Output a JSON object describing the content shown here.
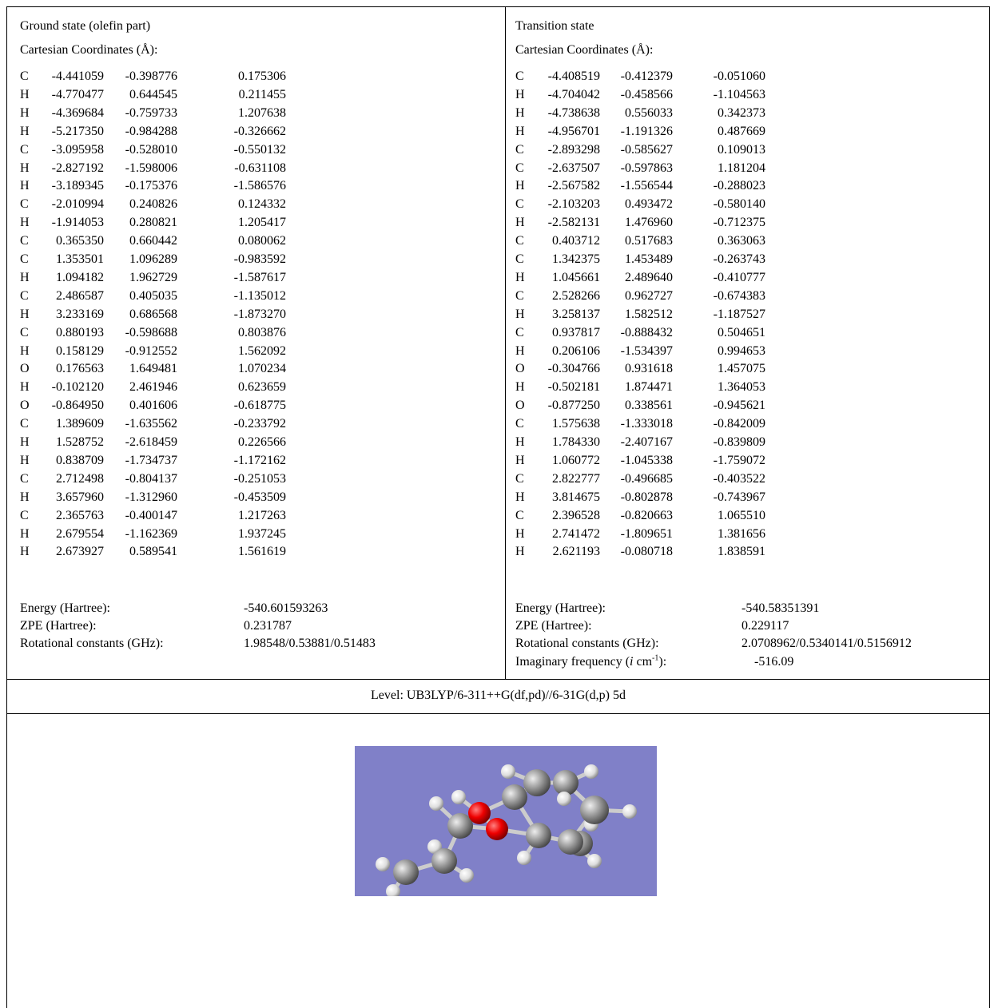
{
  "ground_state": {
    "title": "Ground state (olefin part)",
    "coord_heading": "Cartesian Coordinates (Å):",
    "atoms": [
      [
        "C",
        "-4.441059",
        "-0.398776",
        "0.175306"
      ],
      [
        "H",
        "-4.770477",
        "0.644545",
        "0.211455"
      ],
      [
        "H",
        "-4.369684",
        "-0.759733",
        "1.207638"
      ],
      [
        "H",
        "-5.217350",
        "-0.984288",
        "-0.326662"
      ],
      [
        "C",
        "-3.095958",
        "-0.528010",
        "-0.550132"
      ],
      [
        "H",
        "-2.827192",
        "-1.598006",
        "-0.631108"
      ],
      [
        "H",
        "-3.189345",
        "-0.175376",
        "-1.586576"
      ],
      [
        "C",
        "-2.010994",
        "0.240826",
        "0.124332"
      ],
      [
        "H",
        "-1.914053",
        "0.280821",
        "1.205417"
      ],
      [
        "C",
        "0.365350",
        "0.660442",
        "0.080062"
      ],
      [
        "C",
        "1.353501",
        "1.096289",
        "-0.983592"
      ],
      [
        "H",
        "1.094182",
        "1.962729",
        "-1.587617"
      ],
      [
        "C",
        "2.486587",
        "0.405035",
        "-1.135012"
      ],
      [
        "H",
        "3.233169",
        "0.686568",
        "-1.873270"
      ],
      [
        "C",
        "0.880193",
        "-0.598688",
        "0.803876"
      ],
      [
        "H",
        "0.158129",
        "-0.912552",
        "1.562092"
      ],
      [
        "O",
        "0.176563",
        "1.649481",
        "1.070234"
      ],
      [
        "H",
        "-0.102120",
        "2.461946",
        "0.623659"
      ],
      [
        "O",
        "-0.864950",
        "0.401606",
        "-0.618775"
      ],
      [
        "C",
        "1.389609",
        "-1.635562",
        "-0.233792"
      ],
      [
        "H",
        "1.528752",
        "-2.618459",
        "0.226566"
      ],
      [
        "H",
        "0.838709",
        "-1.734737",
        "-1.172162"
      ],
      [
        "C",
        "2.712498",
        "-0.804137",
        "-0.251053"
      ],
      [
        "H",
        "3.657960",
        "-1.312960",
        "-0.453509"
      ],
      [
        "C",
        "2.365763",
        "-0.400147",
        "1.217263"
      ],
      [
        "H",
        "2.679554",
        "-1.162369",
        "1.937245"
      ],
      [
        "H",
        "2.673927",
        "0.589541",
        "1.561619"
      ]
    ],
    "properties": [
      [
        "Energy (Hartree):",
        "-540.601593263"
      ],
      [
        "ZPE (Hartree):",
        "0.231787"
      ],
      [
        "Rotational constants (GHz):",
        "1.98548/0.53881/0.51483"
      ]
    ]
  },
  "transition_state": {
    "title": "Transition state",
    "coord_heading": "Cartesian Coordinates (Å):",
    "atoms": [
      [
        "C",
        "-4.408519",
        "-0.412379",
        "-0.051060"
      ],
      [
        "H",
        "-4.704042",
        "-0.458566",
        "-1.104563"
      ],
      [
        "H",
        "-4.738638",
        "0.556033",
        "0.342373"
      ],
      [
        "H",
        "-4.956701",
        "-1.191326",
        "0.487669"
      ],
      [
        "C",
        "-2.893298",
        "-0.585627",
        "0.109013"
      ],
      [
        "C",
        "-2.637507",
        "-0.597863",
        "1.181204"
      ],
      [
        "H",
        "-2.567582",
        "-1.556544",
        "-0.288023"
      ],
      [
        "C",
        "-2.103203",
        "0.493472",
        "-0.580140"
      ],
      [
        "H",
        "-2.582131",
        "1.476960",
        "-0.712375"
      ],
      [
        "C",
        "0.403712",
        "0.517683",
        "0.363063"
      ],
      [
        "C",
        "1.342375",
        "1.453489",
        "-0.263743"
      ],
      [
        "H",
        "1.045661",
        "2.489640",
        "-0.410777"
      ],
      [
        "C",
        "2.528266",
        "0.962727",
        "-0.674383"
      ],
      [
        "H",
        "3.258137",
        "1.582512",
        "-1.187527"
      ],
      [
        "C",
        "0.937817",
        "-0.888432",
        "0.504651"
      ],
      [
        "H",
        "0.206106",
        "-1.534397",
        "0.994653"
      ],
      [
        "O",
        "-0.304766",
        "0.931618",
        "1.457075"
      ],
      [
        "H",
        "-0.502181",
        "1.874471",
        "1.364053"
      ],
      [
        "O",
        "-0.877250",
        "0.338561",
        "-0.945621"
      ],
      [
        "C",
        "1.575638",
        "-1.333018",
        "-0.842009"
      ],
      [
        "H",
        "1.784330",
        "-2.407167",
        "-0.839809"
      ],
      [
        "H",
        "1.060772",
        "-1.045338",
        "-1.759072"
      ],
      [
        "C",
        "2.822777",
        "-0.496685",
        "-0.403522"
      ],
      [
        "H",
        "3.814675",
        "-0.802878",
        "-0.743967"
      ],
      [
        "C",
        "2.396528",
        "-0.820663",
        "1.065510"
      ],
      [
        "H",
        "2.741472",
        "-1.809651",
        "1.381656"
      ],
      [
        "H",
        "2.621193",
        "-0.080718",
        "1.838591"
      ]
    ],
    "properties": [
      [
        "Energy (Hartree):",
        "-540.58351391"
      ],
      [
        "ZPE (Hartree):",
        "0.229117"
      ],
      [
        "Rotational constants (GHz):",
        "2.0708962/0.5340141/0.5156912"
      ]
    ],
    "imaginary_frequency": {
      "label_prefix": "Imaginary frequency (",
      "label_italic": "i",
      "label_unit": " cm",
      "label_sup": "-1",
      "label_suffix": "):",
      "value": "-516.09"
    }
  },
  "level": "Level: UB3LYP/6-311++G(df,pd)//6-31G(d,p) 5d"
}
